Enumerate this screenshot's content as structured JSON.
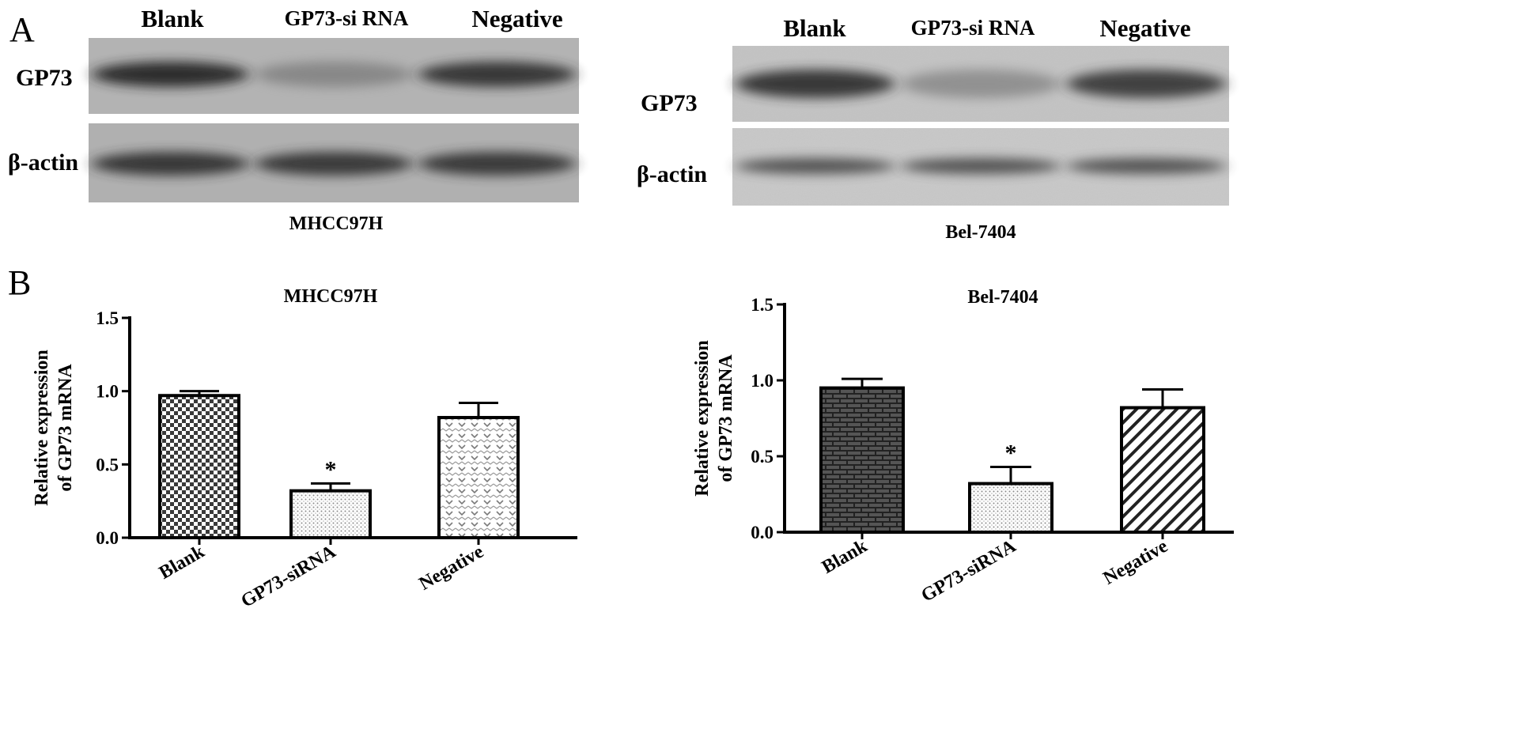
{
  "panels": {
    "a_label": "A",
    "b_label": "B"
  },
  "blots": [
    {
      "lanes": [
        "Blank",
        "GP73-si RNA",
        "Negative"
      ],
      "rows": [
        "GP73",
        "β-actin"
      ],
      "cell_line": "MHCC97H",
      "gp73_intensity": [
        0.85,
        0.35,
        0.8
      ],
      "actin_intensity": [
        0.8,
        0.78,
        0.78
      ]
    },
    {
      "lanes": [
        "Blank",
        "GP73-si RNA",
        "Negative"
      ],
      "rows": [
        "GP73",
        "β-actin"
      ],
      "cell_line": "Bel-7404",
      "gp73_intensity": [
        0.8,
        0.3,
        0.75
      ],
      "actin_intensity": [
        0.65,
        0.65,
        0.65
      ]
    }
  ],
  "chart_data": [
    {
      "type": "bar",
      "title": "MHCC97H",
      "ylabel_lines": [
        "Relative expression",
        "of GP73 mRNA"
      ],
      "xlabel": "",
      "categories": [
        "Blank",
        "GP73-siRNA",
        "Negative"
      ],
      "values": [
        0.97,
        0.32,
        0.82
      ],
      "errors": [
        0.03,
        0.05,
        0.1
      ],
      "significance": [
        "",
        "*",
        ""
      ],
      "patterns": [
        "checker",
        "dots",
        "hearts"
      ],
      "ylim": [
        0,
        1.5
      ],
      "yticks": [
        "0.0",
        "0.5",
        "1.0",
        "1.5"
      ],
      "grid": false
    },
    {
      "type": "bar",
      "title": "Bel-7404",
      "ylabel_lines": [
        "Relative expression",
        "of GP73 mRNA"
      ],
      "xlabel": "",
      "categories": [
        "Blank",
        "GP73-siRNA",
        "Negative"
      ],
      "values": [
        0.95,
        0.32,
        0.82
      ],
      "errors": [
        0.06,
        0.11,
        0.12
      ],
      "significance": [
        "",
        "*",
        ""
      ],
      "patterns": [
        "brick",
        "dots",
        "diagonal"
      ],
      "ylim": [
        0,
        1.5
      ],
      "yticks": [
        "0.0",
        "0.5",
        "1.0",
        "1.5"
      ],
      "grid": false
    }
  ]
}
